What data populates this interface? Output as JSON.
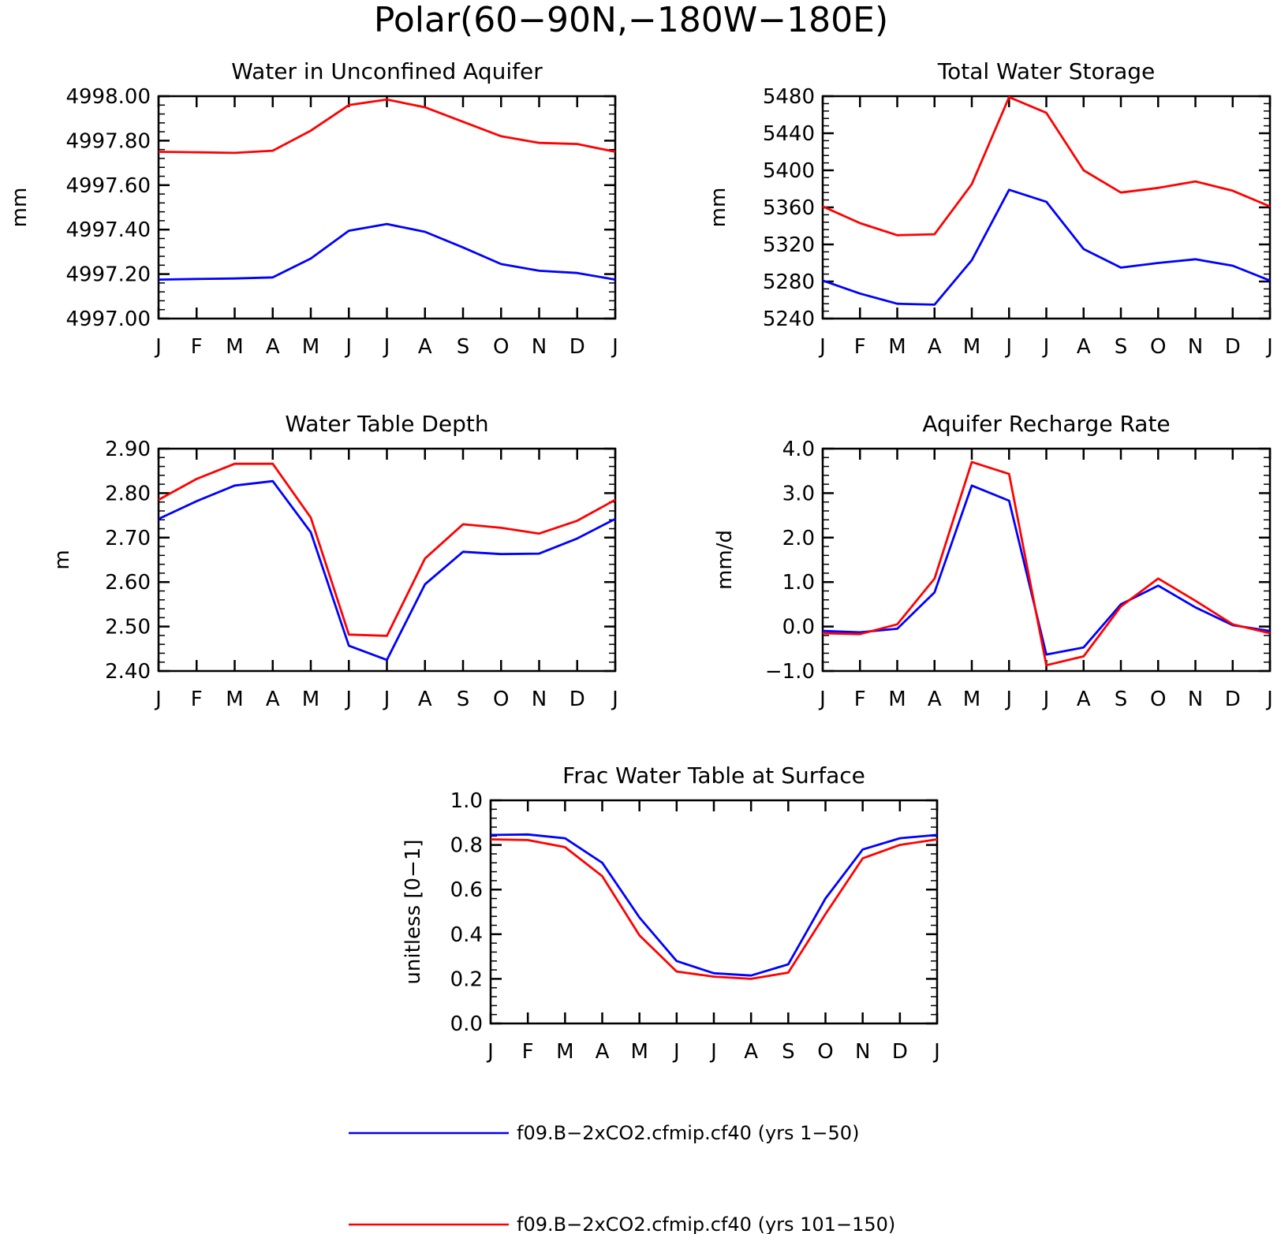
{
  "figure": {
    "title": "Polar(60−90N,−180W−180E)"
  },
  "legend": [
    {
      "name": "f09.B−2xCO2.cfmip.cf40 (yrs 1−50)",
      "color": "#0000ff"
    },
    {
      "name": "f09.B−2xCO2.cfmip.cf40 (yrs 101−150)",
      "color": "#ff0000"
    }
  ],
  "chart_data": [
    {
      "type": "line",
      "title": "Water in Unconfined Aquifer",
      "ylabel": "mm",
      "categories": [
        "J",
        "F",
        "M",
        "A",
        "M",
        "J",
        "J",
        "A",
        "S",
        "O",
        "N",
        "D",
        "J"
      ],
      "ylim": [
        4997.0,
        4998.0
      ],
      "yticks": [
        4997.0,
        4997.2,
        4997.4,
        4997.6,
        4997.8,
        4998.0
      ],
      "ytick_labels": [
        "4997.00",
        "4997.20",
        "4997.40",
        "4997.60",
        "4997.80",
        "4998.00"
      ],
      "yminor": 4,
      "series": [
        {
          "color": "#0000ff",
          "values": [
            4997.175,
            4997.178,
            4997.18,
            4997.185,
            4997.27,
            4997.395,
            4997.425,
            4997.39,
            4997.32,
            4997.245,
            4997.215,
            4997.205,
            4997.175
          ]
        },
        {
          "color": "#ff0000",
          "values": [
            4997.75,
            4997.748,
            4997.745,
            4997.755,
            4997.845,
            4997.96,
            4997.985,
            4997.95,
            4997.885,
            4997.82,
            4997.79,
            4997.785,
            4997.75
          ]
        }
      ]
    },
    {
      "type": "line",
      "title": "Total Water Storage",
      "ylabel": "mm",
      "categories": [
        "J",
        "F",
        "M",
        "A",
        "M",
        "J",
        "J",
        "A",
        "S",
        "O",
        "N",
        "D",
        "J"
      ],
      "ylim": [
        5240,
        5480
      ],
      "yticks": [
        5240,
        5280,
        5320,
        5360,
        5400,
        5440,
        5480
      ],
      "ytick_labels": [
        "5240",
        "5280",
        "5320",
        "5360",
        "5400",
        "5440",
        "5480"
      ],
      "yminor": 4,
      "series": [
        {
          "color": "#0000ff",
          "values": [
            5281,
            5267,
            5256,
            5255,
            5303,
            5379,
            5366,
            5315,
            5295,
            5300,
            5304,
            5297,
            5281
          ]
        },
        {
          "color": "#ff0000",
          "values": [
            5361,
            5343,
            5330,
            5331,
            5385,
            5479,
            5462,
            5400,
            5376,
            5381,
            5388,
            5378,
            5361
          ]
        }
      ]
    },
    {
      "type": "line",
      "title": "Water Table Depth",
      "ylabel": "m",
      "categories": [
        "J",
        "F",
        "M",
        "A",
        "M",
        "J",
        "J",
        "A",
        "S",
        "O",
        "N",
        "D",
        "J"
      ],
      "ylim": [
        2.4,
        2.9
      ],
      "yticks": [
        2.4,
        2.5,
        2.6,
        2.7,
        2.8,
        2.9
      ],
      "ytick_labels": [
        "2.40",
        "2.50",
        "2.60",
        "2.70",
        "2.80",
        "2.90"
      ],
      "yminor": 4,
      "series": [
        {
          "color": "#0000ff",
          "values": [
            2.742,
            2.782,
            2.817,
            2.827,
            2.712,
            2.457,
            2.425,
            2.595,
            2.668,
            2.663,
            2.664,
            2.698,
            2.742
          ]
        },
        {
          "color": "#ff0000",
          "values": [
            2.785,
            2.832,
            2.866,
            2.866,
            2.745,
            2.482,
            2.479,
            2.653,
            2.73,
            2.722,
            2.709,
            2.738,
            2.785
          ]
        }
      ]
    },
    {
      "type": "line",
      "title": "Aquifer Recharge Rate",
      "ylabel": "mm/d",
      "categories": [
        "J",
        "F",
        "M",
        "A",
        "M",
        "J",
        "J",
        "A",
        "S",
        "O",
        "N",
        "D",
        "J"
      ],
      "ylim": [
        -1.0,
        4.0
      ],
      "yticks": [
        -1.0,
        0.0,
        1.0,
        2.0,
        3.0,
        4.0
      ],
      "ytick_labels": [
        "−1.0",
        "0.0",
        "1.0",
        "2.0",
        "3.0",
        "4.0"
      ],
      "yminor": 4,
      "series": [
        {
          "color": "#0000ff",
          "values": [
            -0.1,
            -0.13,
            -0.05,
            0.77,
            3.17,
            2.83,
            -0.63,
            -0.47,
            0.5,
            0.92,
            0.43,
            0.03,
            -0.1
          ]
        },
        {
          "color": "#ff0000",
          "values": [
            -0.15,
            -0.17,
            0.05,
            1.08,
            3.7,
            3.43,
            -0.87,
            -0.67,
            0.45,
            1.08,
            0.58,
            0.05,
            -0.15
          ]
        }
      ]
    },
    {
      "type": "line",
      "title": "Frac Water Table at Surface",
      "ylabel": "unitless [0−1]",
      "categories": [
        "J",
        "F",
        "M",
        "A",
        "M",
        "J",
        "J",
        "A",
        "S",
        "O",
        "N",
        "D",
        "J"
      ],
      "ylim": [
        0.0,
        1.0
      ],
      "yticks": [
        0.0,
        0.2,
        0.4,
        0.6,
        0.8,
        1.0
      ],
      "ytick_labels": [
        "0.0",
        "0.2",
        "0.4",
        "0.6",
        "0.8",
        "1.0"
      ],
      "yminor": 4,
      "series": [
        {
          "color": "#0000ff",
          "values": [
            0.845,
            0.847,
            0.83,
            0.72,
            0.475,
            0.28,
            0.225,
            0.215,
            0.265,
            0.56,
            0.78,
            0.83,
            0.845
          ]
        },
        {
          "color": "#ff0000",
          "values": [
            0.825,
            0.822,
            0.79,
            0.66,
            0.395,
            0.233,
            0.21,
            0.2,
            0.228,
            0.49,
            0.74,
            0.8,
            0.825
          ]
        }
      ]
    }
  ]
}
